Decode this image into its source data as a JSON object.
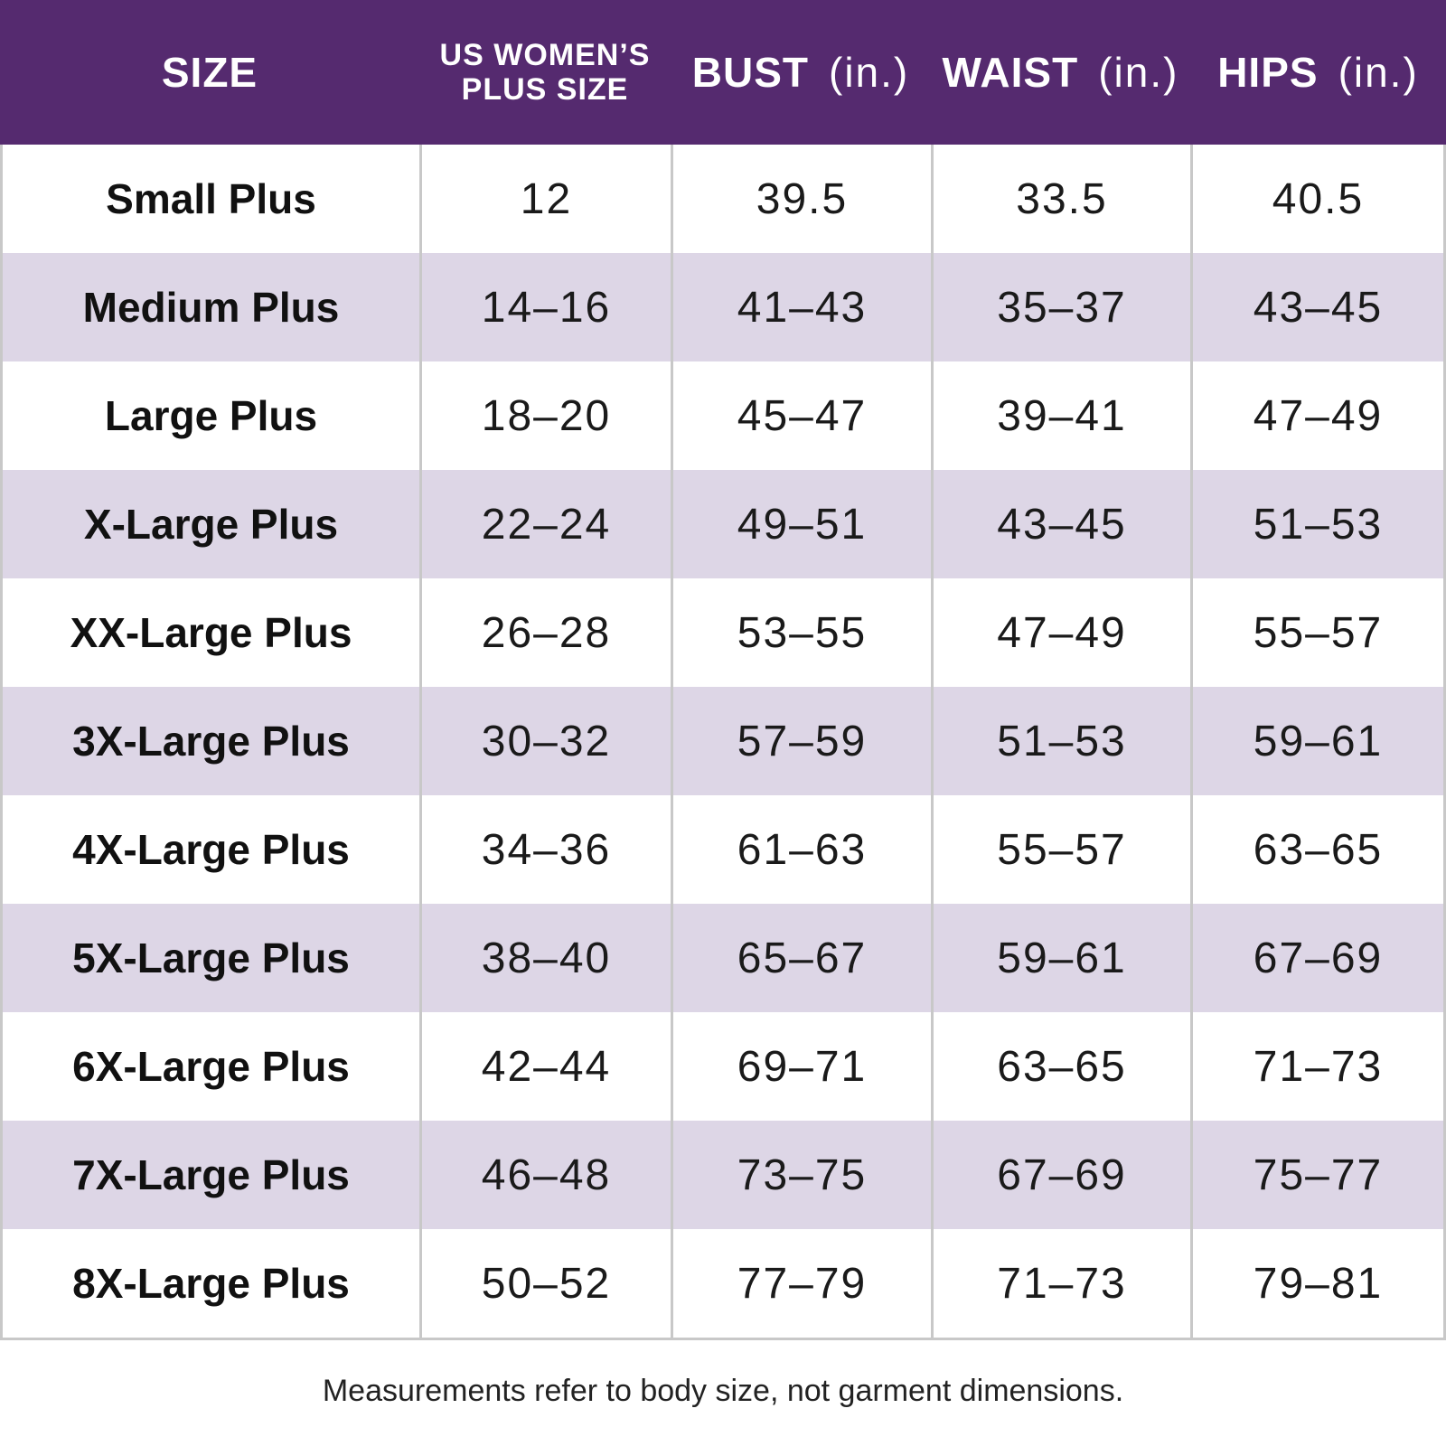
{
  "colors": {
    "header_bg": "#552a6f",
    "alt_row_bg": "#ddd6e6",
    "border": "#c8c8c8"
  },
  "header": {
    "size": "SIZE",
    "us_line1": "US WOMEN’S",
    "us_line2": "PLUS SIZE",
    "bust": "BUST",
    "waist": "WAIST",
    "hips": "HIPS",
    "unit": "(in.)"
  },
  "rows": [
    {
      "size": "Small Plus",
      "us": "12",
      "bust": "39.5",
      "waist": "33.5",
      "hips": "40.5"
    },
    {
      "size": "Medium Plus",
      "us": "14–16",
      "bust": "41–43",
      "waist": "35–37",
      "hips": "43–45"
    },
    {
      "size": "Large Plus",
      "us": "18–20",
      "bust": "45–47",
      "waist": "39–41",
      "hips": "47–49"
    },
    {
      "size": "X-Large Plus",
      "us": "22–24",
      "bust": "49–51",
      "waist": "43–45",
      "hips": "51–53"
    },
    {
      "size": "XX-Large Plus",
      "us": "26–28",
      "bust": "53–55",
      "waist": "47–49",
      "hips": "55–57"
    },
    {
      "size": "3X-Large Plus",
      "us": "30–32",
      "bust": "57–59",
      "waist": "51–53",
      "hips": "59–61"
    },
    {
      "size": "4X-Large Plus",
      "us": "34–36",
      "bust": "61–63",
      "waist": "55–57",
      "hips": "63–65"
    },
    {
      "size": "5X-Large Plus",
      "us": "38–40",
      "bust": "65–67",
      "waist": "59–61",
      "hips": "67–69"
    },
    {
      "size": "6X-Large Plus",
      "us": "42–44",
      "bust": "69–71",
      "waist": "63–65",
      "hips": "71–73"
    },
    {
      "size": "7X-Large Plus",
      "us": "46–48",
      "bust": "73–75",
      "waist": "67–69",
      "hips": "75–77"
    },
    {
      "size": "8X-Large Plus",
      "us": "50–52",
      "bust": "77–79",
      "waist": "71–73",
      "hips": "79–81"
    }
  ],
  "footnote": "Measurements refer to body size, not garment dimensions."
}
